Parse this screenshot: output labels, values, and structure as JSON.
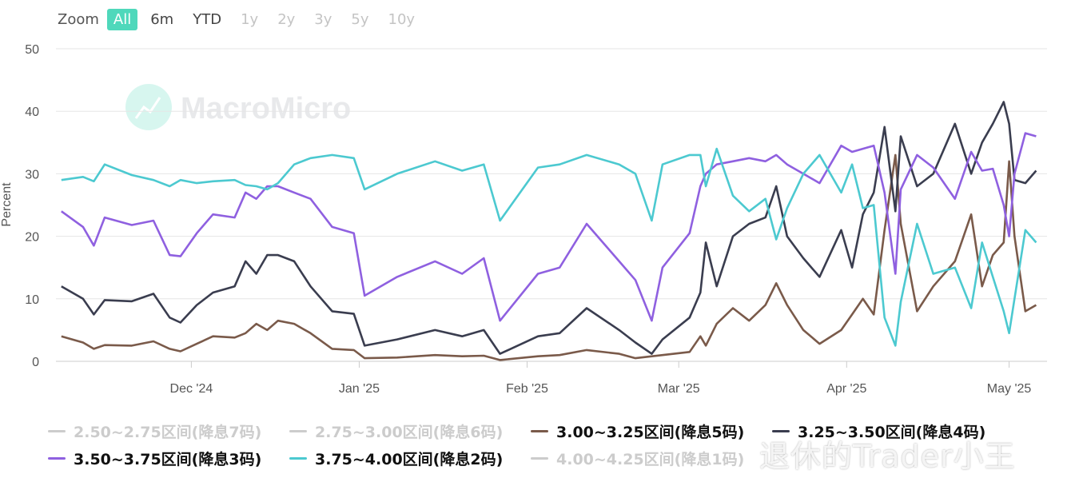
{
  "zoom": {
    "label": "Zoom",
    "buttons": [
      "All",
      "6m",
      "YTD",
      "1y",
      "2y",
      "3y",
      "5y",
      "10y"
    ],
    "active": "All",
    "enabled": [
      "All",
      "6m",
      "YTD"
    ]
  },
  "watermark": {
    "logo_text": "MacroMicro",
    "corner_text": "退休的Trader小王"
  },
  "colors": {
    "active_button": "#4fd8bb",
    "grid": "#e6e6e6"
  },
  "chart_data": {
    "type": "line",
    "ylabel": "Percent",
    "ylim": [
      0,
      50
    ],
    "yticks": [
      0,
      10,
      20,
      30,
      40,
      50
    ],
    "xlim": [
      "2024-11-06",
      "2025-05-08"
    ],
    "xticks": [
      {
        "date": "2024-12-01",
        "label": "Dec '24"
      },
      {
        "date": "2025-01-01",
        "label": "Jan '25"
      },
      {
        "date": "2025-02-01",
        "label": "Feb '25"
      },
      {
        "date": "2025-03-01",
        "label": "Mar '25"
      },
      {
        "date": "2025-04-01",
        "label": "Apr '25"
      },
      {
        "date": "2025-05-01",
        "label": "May '25"
      }
    ],
    "grid": true,
    "legend_position": "bottom",
    "series": [
      {
        "name": "2.50~2.75区间(降息7码)",
        "color": "#cccccc",
        "visible": false,
        "points": []
      },
      {
        "name": "2.75~3.00区间(降息6码)",
        "color": "#cccccc",
        "visible": false,
        "points": []
      },
      {
        "name": "3.00~3.25区间(降息5码)",
        "color": "#7a5a4a",
        "visible": true,
        "points": [
          [
            "2024-11-07",
            4.0
          ],
          [
            "2024-11-11",
            3.0
          ],
          [
            "2024-11-13",
            2.0
          ],
          [
            "2024-11-15",
            2.6
          ],
          [
            "2024-11-20",
            2.5
          ],
          [
            "2024-11-24",
            3.2
          ],
          [
            "2024-11-27",
            2.0
          ],
          [
            "2024-11-29",
            1.6
          ],
          [
            "2024-12-02",
            2.8
          ],
          [
            "2024-12-05",
            4.0
          ],
          [
            "2024-12-09",
            3.8
          ],
          [
            "2024-12-11",
            4.5
          ],
          [
            "2024-12-13",
            6.0
          ],
          [
            "2024-12-15",
            5.0
          ],
          [
            "2024-12-17",
            6.5
          ],
          [
            "2024-12-20",
            6.0
          ],
          [
            "2024-12-23",
            4.5
          ],
          [
            "2024-12-27",
            2.0
          ],
          [
            "2024-12-31",
            1.8
          ],
          [
            "2025-01-02",
            0.5
          ],
          [
            "2025-01-08",
            0.6
          ],
          [
            "2025-01-15",
            1.0
          ],
          [
            "2025-01-20",
            0.8
          ],
          [
            "2025-01-24",
            0.9
          ],
          [
            "2025-01-27",
            0.2
          ],
          [
            "2025-02-03",
            0.8
          ],
          [
            "2025-02-07",
            1.0
          ],
          [
            "2025-02-12",
            1.8
          ],
          [
            "2025-02-18",
            1.2
          ],
          [
            "2025-02-21",
            0.5
          ],
          [
            "2025-02-26",
            1.0
          ],
          [
            "2025-03-03",
            1.5
          ],
          [
            "2025-03-05",
            4.0
          ],
          [
            "2025-03-06",
            2.5
          ],
          [
            "2025-03-08",
            6.0
          ],
          [
            "2025-03-11",
            8.5
          ],
          [
            "2025-03-14",
            6.5
          ],
          [
            "2025-03-17",
            9.0
          ],
          [
            "2025-03-19",
            12.5
          ],
          [
            "2025-03-21",
            9.0
          ],
          [
            "2025-03-24",
            5.0
          ],
          [
            "2025-03-27",
            2.8
          ],
          [
            "2025-03-31",
            5.0
          ],
          [
            "2025-04-02",
            7.5
          ],
          [
            "2025-04-04",
            10.0
          ],
          [
            "2025-04-06",
            7.5
          ],
          [
            "2025-04-08",
            21.0
          ],
          [
            "2025-04-10",
            33.0
          ],
          [
            "2025-04-11",
            22.0
          ],
          [
            "2025-04-14",
            8.0
          ],
          [
            "2025-04-17",
            12.0
          ],
          [
            "2025-04-21",
            16.0
          ],
          [
            "2025-04-24",
            23.5
          ],
          [
            "2025-04-26",
            12.0
          ],
          [
            "2025-04-28",
            17.0
          ],
          [
            "2025-04-30",
            19.0
          ],
          [
            "2025-05-01",
            32.0
          ],
          [
            "2025-05-02",
            20.0
          ],
          [
            "2025-05-04",
            8.0
          ],
          [
            "2025-05-06",
            9.0
          ]
        ]
      },
      {
        "name": "3.25~3.50区间(降息4码)",
        "color": "#3a3d4f",
        "visible": true,
        "points": [
          [
            "2024-11-07",
            12.0
          ],
          [
            "2024-11-11",
            10.0
          ],
          [
            "2024-11-13",
            7.5
          ],
          [
            "2024-11-15",
            9.8
          ],
          [
            "2024-11-20",
            9.6
          ],
          [
            "2024-11-24",
            10.8
          ],
          [
            "2024-11-27",
            7.0
          ],
          [
            "2024-11-29",
            6.2
          ],
          [
            "2024-12-02",
            9.0
          ],
          [
            "2024-12-05",
            11.0
          ],
          [
            "2024-12-09",
            12.0
          ],
          [
            "2024-12-11",
            16.0
          ],
          [
            "2024-12-13",
            14.0
          ],
          [
            "2024-12-15",
            17.0
          ],
          [
            "2024-12-17",
            17.0
          ],
          [
            "2024-12-20",
            16.0
          ],
          [
            "2024-12-23",
            12.0
          ],
          [
            "2024-12-27",
            8.0
          ],
          [
            "2024-12-31",
            7.6
          ],
          [
            "2025-01-02",
            2.5
          ],
          [
            "2025-01-08",
            3.5
          ],
          [
            "2025-01-15",
            5.0
          ],
          [
            "2025-01-20",
            4.0
          ],
          [
            "2025-01-24",
            5.0
          ],
          [
            "2025-01-27",
            1.2
          ],
          [
            "2025-02-03",
            4.0
          ],
          [
            "2025-02-07",
            4.5
          ],
          [
            "2025-02-12",
            8.5
          ],
          [
            "2025-02-18",
            5.0
          ],
          [
            "2025-02-21",
            3.0
          ],
          [
            "2025-02-24",
            1.2
          ],
          [
            "2025-02-26",
            3.5
          ],
          [
            "2025-03-03",
            7.0
          ],
          [
            "2025-03-05",
            11.0
          ],
          [
            "2025-03-06",
            19.0
          ],
          [
            "2025-03-08",
            12.0
          ],
          [
            "2025-03-11",
            20.0
          ],
          [
            "2025-03-14",
            22.0
          ],
          [
            "2025-03-17",
            23.0
          ],
          [
            "2025-03-19",
            28.0
          ],
          [
            "2025-03-21",
            20.0
          ],
          [
            "2025-03-24",
            16.5
          ],
          [
            "2025-03-27",
            13.5
          ],
          [
            "2025-03-31",
            21.0
          ],
          [
            "2025-04-02",
            15.0
          ],
          [
            "2025-04-04",
            23.5
          ],
          [
            "2025-04-06",
            27.0
          ],
          [
            "2025-04-08",
            37.5
          ],
          [
            "2025-04-10",
            24.0
          ],
          [
            "2025-04-11",
            36.0
          ],
          [
            "2025-04-14",
            28.0
          ],
          [
            "2025-04-17",
            30.0
          ],
          [
            "2025-04-21",
            38.0
          ],
          [
            "2025-04-24",
            30.0
          ],
          [
            "2025-04-26",
            35.0
          ],
          [
            "2025-04-28",
            38.0
          ],
          [
            "2025-04-30",
            41.5
          ],
          [
            "2025-05-01",
            38.0
          ],
          [
            "2025-05-02",
            29.0
          ],
          [
            "2025-05-04",
            28.5
          ],
          [
            "2025-05-06",
            30.5
          ]
        ]
      },
      {
        "name": "3.50~3.75区间(降息3码)",
        "color": "#8f60e0",
        "visible": true,
        "points": [
          [
            "2024-11-07",
            24.0
          ],
          [
            "2024-11-11",
            21.5
          ],
          [
            "2024-11-13",
            18.5
          ],
          [
            "2024-11-15",
            23.0
          ],
          [
            "2024-11-20",
            21.8
          ],
          [
            "2024-11-24",
            22.5
          ],
          [
            "2024-11-27",
            17.0
          ],
          [
            "2024-11-29",
            16.8
          ],
          [
            "2024-12-02",
            20.5
          ],
          [
            "2024-12-05",
            23.5
          ],
          [
            "2024-12-09",
            23.0
          ],
          [
            "2024-12-11",
            27.0
          ],
          [
            "2024-12-13",
            26.0
          ],
          [
            "2024-12-15",
            28.0
          ],
          [
            "2024-12-17",
            28.0
          ],
          [
            "2024-12-20",
            27.0
          ],
          [
            "2024-12-23",
            26.0
          ],
          [
            "2024-12-27",
            21.5
          ],
          [
            "2024-12-31",
            20.5
          ],
          [
            "2025-01-02",
            10.5
          ],
          [
            "2025-01-08",
            13.5
          ],
          [
            "2025-01-15",
            16.0
          ],
          [
            "2025-01-20",
            14.0
          ],
          [
            "2025-01-24",
            16.5
          ],
          [
            "2025-01-27",
            6.5
          ],
          [
            "2025-02-03",
            14.0
          ],
          [
            "2025-02-07",
            15.0
          ],
          [
            "2025-02-12",
            22.0
          ],
          [
            "2025-02-18",
            16.0
          ],
          [
            "2025-02-21",
            13.0
          ],
          [
            "2025-02-24",
            6.5
          ],
          [
            "2025-02-26",
            15.0
          ],
          [
            "2025-03-03",
            20.5
          ],
          [
            "2025-03-05",
            28.0
          ],
          [
            "2025-03-06",
            30.0
          ],
          [
            "2025-03-08",
            31.5
          ],
          [
            "2025-03-11",
            32.0
          ],
          [
            "2025-03-14",
            32.5
          ],
          [
            "2025-03-17",
            32.0
          ],
          [
            "2025-03-19",
            33.0
          ],
          [
            "2025-03-21",
            31.5
          ],
          [
            "2025-03-24",
            30.0
          ],
          [
            "2025-03-27",
            28.5
          ],
          [
            "2025-03-31",
            34.5
          ],
          [
            "2025-04-02",
            33.5
          ],
          [
            "2025-04-04",
            34.0
          ],
          [
            "2025-04-06",
            34.5
          ],
          [
            "2025-04-08",
            27.0
          ],
          [
            "2025-04-10",
            14.0
          ],
          [
            "2025-04-11",
            27.5
          ],
          [
            "2025-04-14",
            33.0
          ],
          [
            "2025-04-17",
            31.0
          ],
          [
            "2025-04-21",
            26.0
          ],
          [
            "2025-04-24",
            33.5
          ],
          [
            "2025-04-26",
            30.5
          ],
          [
            "2025-04-28",
            30.8
          ],
          [
            "2025-04-30",
            25.0
          ],
          [
            "2025-05-01",
            20.0
          ],
          [
            "2025-05-02",
            30.0
          ],
          [
            "2025-05-04",
            36.5
          ],
          [
            "2025-05-06",
            36.0
          ]
        ]
      },
      {
        "name": "3.75~4.00区间(降息2码)",
        "color": "#4cc9d0",
        "visible": true,
        "points": [
          [
            "2024-11-07",
            29.0
          ],
          [
            "2024-11-11",
            29.5
          ],
          [
            "2024-11-13",
            28.8
          ],
          [
            "2024-11-15",
            31.5
          ],
          [
            "2024-11-20",
            29.8
          ],
          [
            "2024-11-24",
            29.0
          ],
          [
            "2024-11-27",
            28.0
          ],
          [
            "2024-11-29",
            29.0
          ],
          [
            "2024-12-02",
            28.5
          ],
          [
            "2024-12-05",
            28.8
          ],
          [
            "2024-12-09",
            29.0
          ],
          [
            "2024-12-11",
            28.2
          ],
          [
            "2024-12-13",
            28.0
          ],
          [
            "2024-12-15",
            27.5
          ],
          [
            "2024-12-17",
            28.5
          ],
          [
            "2024-12-20",
            31.5
          ],
          [
            "2024-12-23",
            32.5
          ],
          [
            "2024-12-27",
            33.0
          ],
          [
            "2024-12-31",
            32.5
          ],
          [
            "2025-01-02",
            27.5
          ],
          [
            "2025-01-08",
            30.0
          ],
          [
            "2025-01-15",
            32.0
          ],
          [
            "2025-01-20",
            30.5
          ],
          [
            "2025-01-24",
            31.5
          ],
          [
            "2025-01-27",
            22.5
          ],
          [
            "2025-02-03",
            31.0
          ],
          [
            "2025-02-07",
            31.5
          ],
          [
            "2025-02-12",
            33.0
          ],
          [
            "2025-02-18",
            31.5
          ],
          [
            "2025-02-21",
            30.0
          ],
          [
            "2025-02-24",
            22.5
          ],
          [
            "2025-02-26",
            31.5
          ],
          [
            "2025-03-03",
            33.0
          ],
          [
            "2025-03-05",
            33.0
          ],
          [
            "2025-03-06",
            28.0
          ],
          [
            "2025-03-08",
            34.0
          ],
          [
            "2025-03-11",
            26.5
          ],
          [
            "2025-03-14",
            24.0
          ],
          [
            "2025-03-17",
            26.0
          ],
          [
            "2025-03-19",
            19.5
          ],
          [
            "2025-03-21",
            24.5
          ],
          [
            "2025-03-24",
            30.0
          ],
          [
            "2025-03-27",
            33.0
          ],
          [
            "2025-03-31",
            27.0
          ],
          [
            "2025-04-02",
            31.5
          ],
          [
            "2025-04-04",
            24.5
          ],
          [
            "2025-04-06",
            25.0
          ],
          [
            "2025-04-08",
            7.0
          ],
          [
            "2025-04-10",
            2.5
          ],
          [
            "2025-04-11",
            9.5
          ],
          [
            "2025-04-14",
            22.0
          ],
          [
            "2025-04-17",
            14.0
          ],
          [
            "2025-04-21",
            15.0
          ],
          [
            "2025-04-24",
            8.5
          ],
          [
            "2025-04-26",
            19.0
          ],
          [
            "2025-04-28",
            13.5
          ],
          [
            "2025-04-30",
            8.0
          ],
          [
            "2025-05-01",
            4.5
          ],
          [
            "2025-05-02",
            10.0
          ],
          [
            "2025-05-04",
            21.0
          ],
          [
            "2025-05-06",
            19.0
          ]
        ]
      },
      {
        "name": "4.00~4.25区间(降息1码)",
        "color": "#cccccc",
        "visible": false,
        "points": []
      }
    ]
  }
}
